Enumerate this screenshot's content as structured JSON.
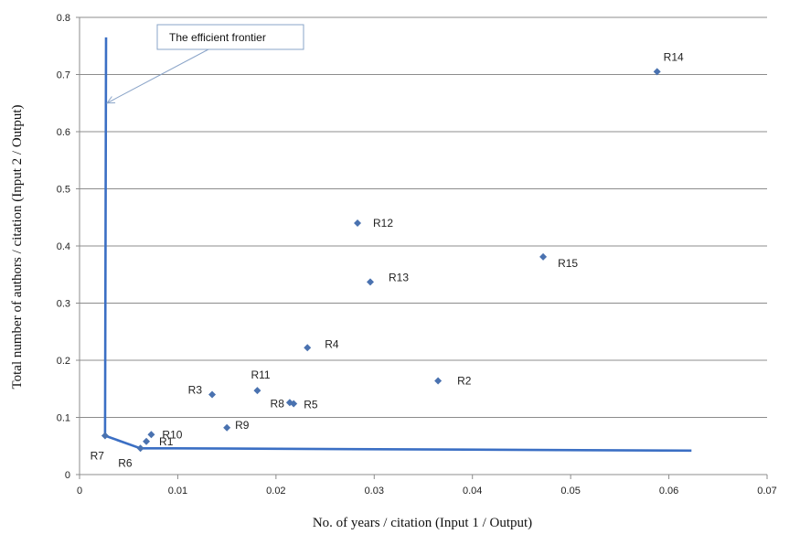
{
  "chart_data": {
    "type": "scatter",
    "xlabel": "No. of years / citation (Input 1 / Output)",
    "ylabel": "Total number of authors / citation (Input 2 / Output)",
    "xlim": [
      0,
      0.07
    ],
    "ylim": [
      0,
      0.8
    ],
    "x_ticks": [
      "0",
      "0.01",
      "0.02",
      "0.03",
      "0.04",
      "0.05",
      "0.06",
      "0.07"
    ],
    "y_ticks": [
      "0",
      "0.1",
      "0.2",
      "0.3",
      "0.4",
      "0.5",
      "0.6",
      "0.7",
      "0.8"
    ],
    "grid": "horizontal",
    "marker_color": "#4a72b0",
    "frontier_color": "#3b6fc4",
    "points": [
      {
        "label": "R1",
        "x": 0.0068,
        "y": 0.058
      },
      {
        "label": "R2",
        "x": 0.0365,
        "y": 0.164
      },
      {
        "label": "R3",
        "x": 0.0135,
        "y": 0.14
      },
      {
        "label": "R4",
        "x": 0.0232,
        "y": 0.222
      },
      {
        "label": "R5",
        "x": 0.0218,
        "y": 0.124
      },
      {
        "label": "R6",
        "x": 0.0062,
        "y": 0.046
      },
      {
        "label": "R7",
        "x": 0.0026,
        "y": 0.068
      },
      {
        "label": "R8",
        "x": 0.0214,
        "y": 0.126
      },
      {
        "label": "R9",
        "x": 0.015,
        "y": 0.082
      },
      {
        "label": "R10",
        "x": 0.0073,
        "y": 0.07
      },
      {
        "label": "R11",
        "x": 0.0181,
        "y": 0.147
      },
      {
        "label": "R12",
        "x": 0.0283,
        "y": 0.44
      },
      {
        "label": "R13",
        "x": 0.0296,
        "y": 0.337
      },
      {
        "label": "R14",
        "x": 0.0588,
        "y": 0.705
      },
      {
        "label": "R15",
        "x": 0.0472,
        "y": 0.381
      }
    ],
    "frontier": [
      [
        0.0027,
        0.765
      ],
      [
        0.0026,
        0.068
      ],
      [
        0.0062,
        0.046
      ],
      [
        0.0096,
        0.046
      ],
      [
        0.0623,
        0.042
      ]
    ],
    "annotations": [
      {
        "text": "The efficient frontier",
        "arrow_to": [
          0.0028,
          0.65
        ]
      }
    ]
  }
}
